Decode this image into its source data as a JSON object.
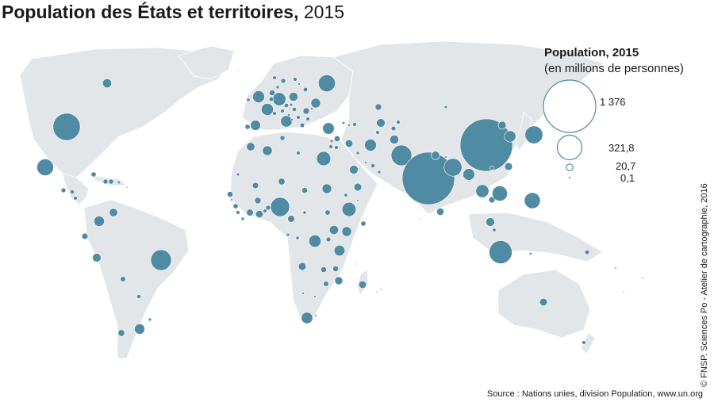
{
  "title": {
    "main": "Population des États et territoires,",
    "year": "2015"
  },
  "legend": {
    "title": "Population, 2015",
    "subtitle": "(en millions de personnes)",
    "values": [
      "1 376",
      "321,8",
      "20,7",
      "0,1"
    ]
  },
  "source": "Source : Nations unies, division Population, www.un.org",
  "credit": "© FNSP. Sciences Po - Atelier de cartographie, 2016",
  "colors": {
    "bubble": "#4f8ba2",
    "land": "#e3e6e9",
    "background": "#ffffff"
  }
}
